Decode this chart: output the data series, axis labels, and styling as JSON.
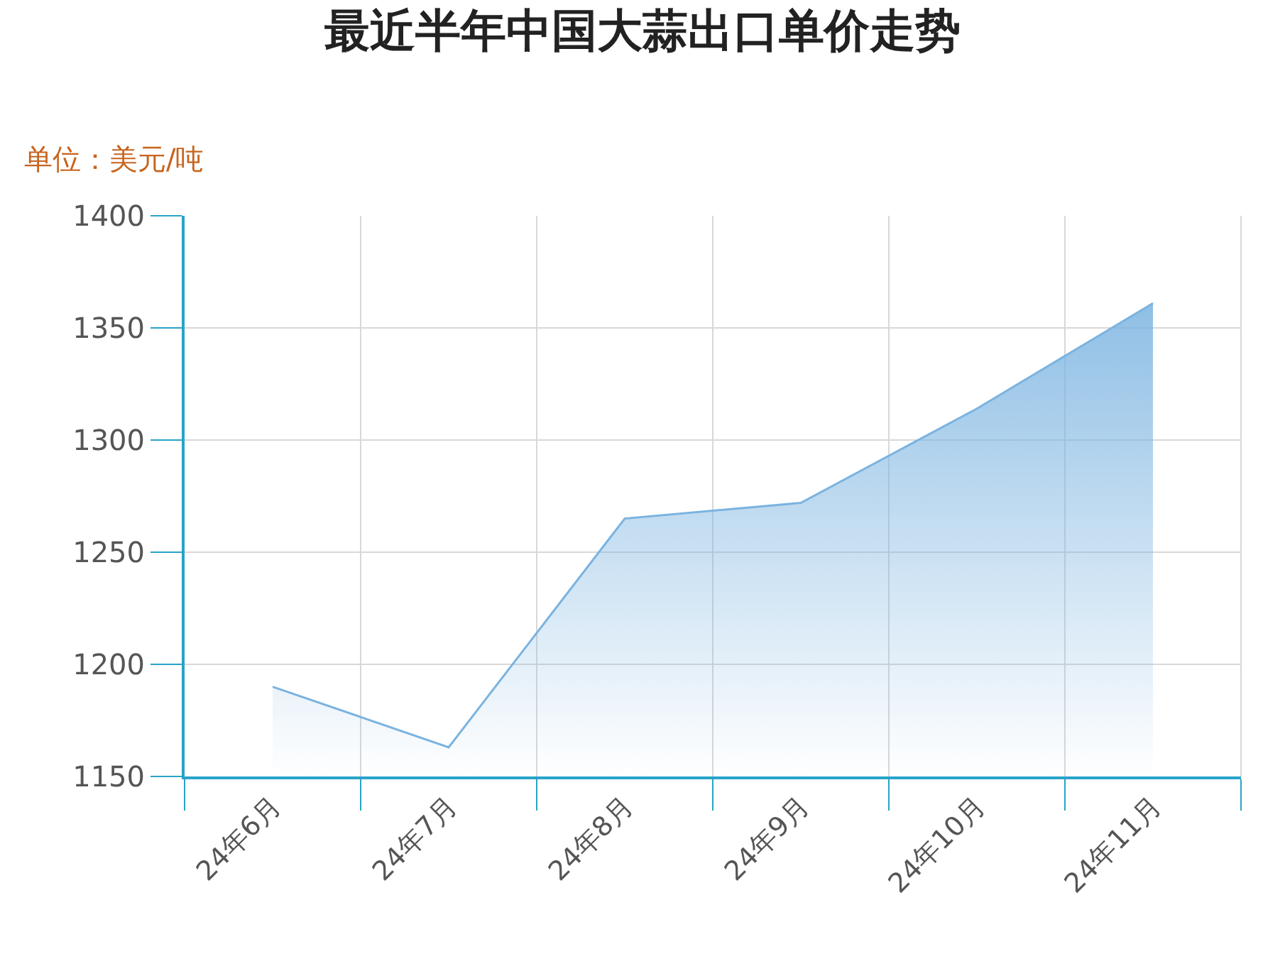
{
  "chart_data": {
    "type": "area",
    "title": "最近半年中国大蒜出口单价走势",
    "ylabel": "单位：美元/吨",
    "categories": [
      "24年6月",
      "24年7月",
      "24年8月",
      "24年9月",
      "24年10月",
      "24年11月"
    ],
    "series": [
      {
        "color": "#7ab3e0",
        "values": [
          1190,
          1163,
          1265,
          1272,
          1314,
          1361
        ]
      }
    ],
    "ylim": [
      1150,
      1400
    ],
    "yticks": [
      1150,
      1200,
      1250,
      1300,
      1350,
      1400
    ],
    "grid": true,
    "marker": "none",
    "line_style": "solid"
  }
}
